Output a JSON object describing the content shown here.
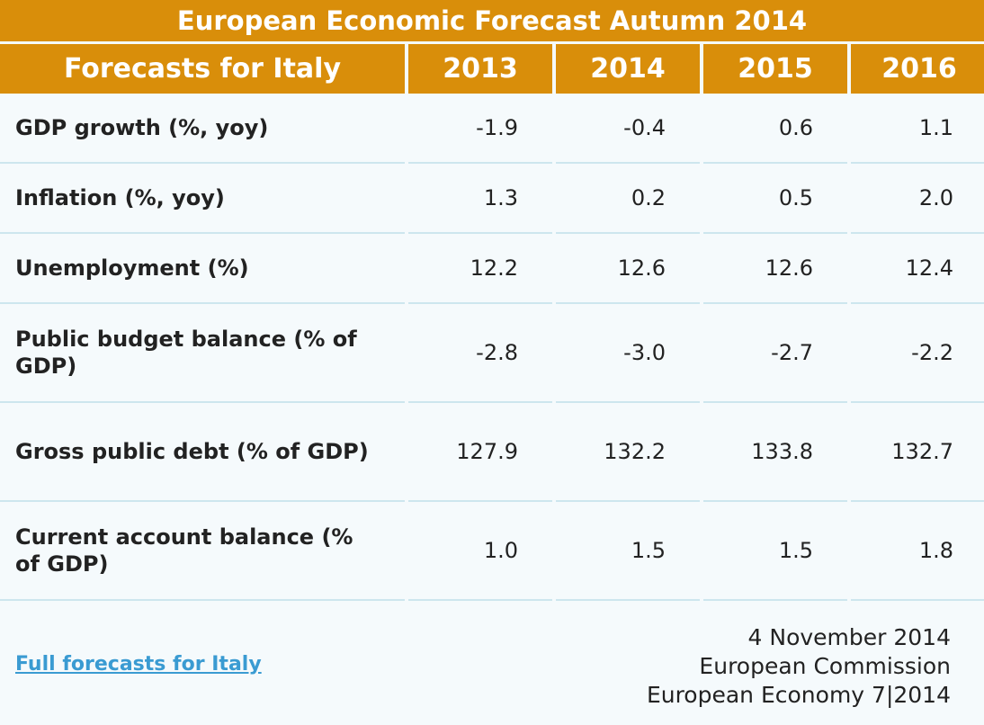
{
  "title": "European Economic Forecast Autumn 2014",
  "header": {
    "label": "Forecasts for Italy",
    "years": [
      "2013",
      "2014",
      "2015",
      "2016"
    ]
  },
  "rows": [
    {
      "label": "GDP growth (%, yoy)",
      "values": [
        "-1.9",
        "-0.4",
        "0.6",
        "1.1"
      ]
    },
    {
      "label": "Inflation (%, yoy)",
      "values": [
        "1.3",
        "0.2",
        "0.5",
        "2.0"
      ]
    },
    {
      "label": "Unemployment (%)",
      "values": [
        "12.2",
        "12.6",
        "12.6",
        "12.4"
      ]
    },
    {
      "label": "Public budget balance (% of GDP)",
      "values": [
        "-2.8",
        "-3.0",
        "-2.7",
        "-2.2"
      ]
    },
    {
      "label": "Gross public debt (% of GDP)",
      "values": [
        "127.9",
        "132.2",
        "133.8",
        "132.7"
      ]
    },
    {
      "label": "Current account balance (% of GDP)",
      "values": [
        "1.0",
        "1.5",
        "1.5",
        "1.8"
      ]
    }
  ],
  "footer": {
    "link_text": "Full forecasts for Italy",
    "date": "4 November 2014",
    "organization": "European Commission",
    "publication": "European Economy 7|2014"
  },
  "colors": {
    "header_bg": "#d98e0a",
    "header_text": "#ffffff",
    "body_bg": "#f5fafc",
    "row_divider": "#cde6ee",
    "link": "#3a9bd2"
  }
}
